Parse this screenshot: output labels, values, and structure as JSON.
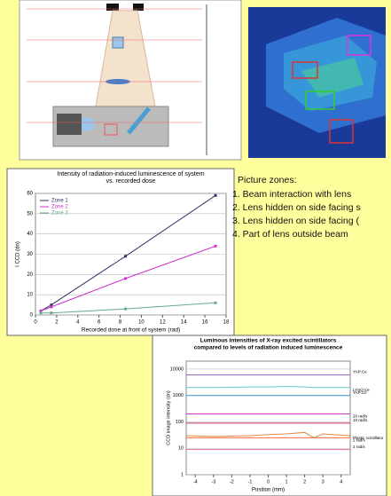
{
  "zones_heading": "Picture zones:",
  "zones": [
    "1. Beam interaction with lens",
    "2. Lens hidden on side facing s",
    "3. Lens hidden on side facing (",
    "4. Part of lens outside beam"
  ],
  "chart_data": [
    {
      "type": "line",
      "title": [
        "Intensity of radiation-induced luminescence of system",
        "vs. recorded dose"
      ],
      "x_label": "Recorded dose at front of system (rad)",
      "y_label": "I CCD (dn)",
      "x": [
        0.5,
        1.5,
        8.5,
        17
      ],
      "series": [
        {
          "name": "Zone 1",
          "color": "#333366",
          "values": [
            2,
            5,
            29,
            59
          ]
        },
        {
          "name": "Zone 2",
          "color": "#cc33cc",
          "values": [
            2,
            4,
            18,
            34
          ]
        },
        {
          "name": "Zone 3",
          "color": "#66aa88",
          "values": [
            1,
            1,
            3,
            6
          ]
        }
      ],
      "xlim": [
        0,
        18
      ],
      "xticks": [
        0,
        2,
        4,
        6,
        8,
        10,
        12,
        14,
        16,
        18
      ],
      "ylim": [
        0,
        60
      ],
      "yticks": [
        0,
        10,
        20,
        30,
        40,
        50,
        60
      ],
      "grid": true,
      "markers": true,
      "legend": "top-left"
    },
    {
      "type": "line",
      "title": [
        "Luminous intensities of X-ray excited scintillators",
        "compared to levels of radiation induced luminescence"
      ],
      "x_label": "Position (mm)",
      "y_label": "CCD image intensity (dn)",
      "x": [
        -4.5,
        -3,
        -1,
        0,
        1,
        2,
        2.5,
        3,
        4.5
      ],
      "series": [
        {
          "name": "YAP:Ce",
          "color": "#9966cc",
          "values": [
            6000,
            6000,
            6000,
            6000,
            6000,
            6000,
            6000,
            6000,
            6000
          ]
        },
        {
          "name": "LYSO:Ce",
          "color": "#66cccc",
          "values": [
            2000,
            2000,
            2100,
            2100,
            2200,
            2100,
            2000,
            2000,
            2000
          ]
        },
        {
          "name": "YAP:Ce",
          "color": "#3399cc",
          "values": [
            1000,
            1000,
            1000,
            1000,
            1000,
            1000,
            1000,
            1000,
            1000
          ]
        },
        {
          "name": "20 rad/s",
          "color": "#cc33cc",
          "values": [
            200,
            200,
            200,
            200,
            200,
            200,
            200,
            200,
            200
          ]
        },
        {
          "name": "10 rad/s",
          "color": "#cc3366",
          "values": [
            90,
            90,
            90,
            90,
            90,
            90,
            90,
            90,
            90
          ]
        },
        {
          "name": "2 rad/s",
          "color": "#ff6633",
          "values": [
            25,
            25,
            25,
            25,
            25,
            25,
            25,
            25,
            25
          ]
        },
        {
          "name": "1 rad/s",
          "color": "#ee66aa",
          "values": [
            9,
            9,
            9,
            9,
            9,
            9,
            9,
            9,
            9
          ]
        },
        {
          "name": "Plastic scintillator",
          "color": "#dd8844",
          "values": [
            30,
            28,
            30,
            33,
            35,
            40,
            25,
            35,
            30
          ]
        }
      ],
      "xlim": [
        -4.5,
        4.5
      ],
      "xticks": [
        -4,
        -3,
        -2,
        -1,
        0,
        1,
        2,
        3,
        4
      ],
      "ylim": [
        1,
        20000
      ],
      "yticks": [
        1,
        10,
        100,
        1000,
        10000
      ],
      "log_y": true,
      "grid": true
    }
  ]
}
